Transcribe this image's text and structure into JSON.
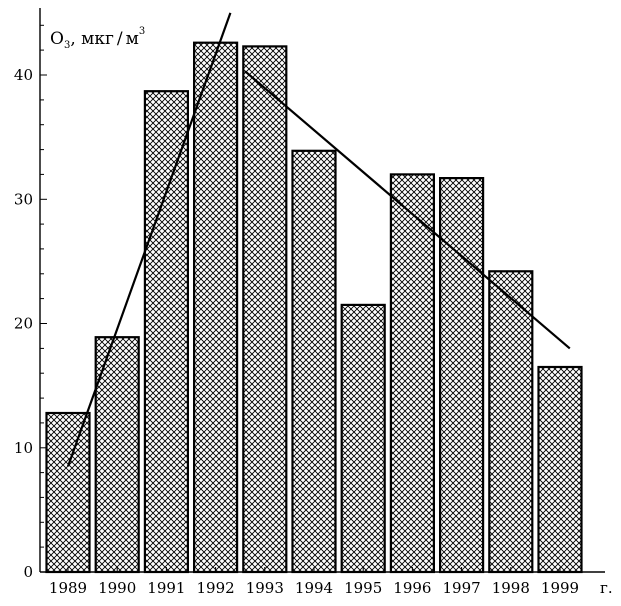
{
  "chart_data": {
    "type": "bar",
    "title": "",
    "ylabel": {
      "main": "O",
      "sub": "3",
      "comma": ", ",
      "units": "мкг",
      "slash": "/",
      "per": "м",
      "sup": "3"
    },
    "xunit": "г.",
    "ylim": [
      0,
      45
    ],
    "yticks": [
      0,
      10,
      20,
      30,
      40
    ],
    "categories": [
      "1989",
      "1990",
      "1991",
      "1992",
      "1993",
      "1994",
      "1995",
      "1996",
      "1997",
      "1998",
      "1999"
    ],
    "values": [
      12.8,
      18.9,
      38.7,
      42.6,
      42.3,
      33.9,
      21.5,
      32.0,
      31.7,
      24.2,
      16.5
    ],
    "pattern": "crosshatch",
    "trend_lines": [
      {
        "x_start": 1989,
        "y_start": 8.5,
        "x_end": 1992.3,
        "y_end": 45
      },
      {
        "x_start": 1992.6,
        "y_start": 40.3,
        "x_end": 1999.2,
        "y_end": 18.0
      }
    ],
    "grid": false,
    "legend": "none"
  }
}
